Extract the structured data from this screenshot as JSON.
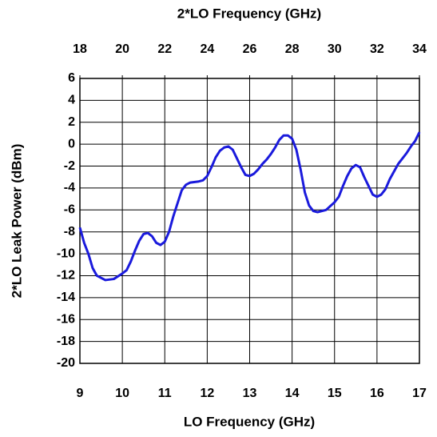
{
  "chart_data": {
    "type": "line",
    "xlabel": "LO Frequency (GHz)",
    "x2label": "2*LO Frequency (GHz)",
    "ylabel": "2*LO Leak Power (dBm)",
    "xlim": [
      9,
      17
    ],
    "xticks": [
      9,
      10,
      11,
      12,
      13,
      14,
      15,
      16,
      17
    ],
    "x2lim": [
      18,
      34
    ],
    "x2ticks": [
      18,
      20,
      22,
      24,
      26,
      28,
      30,
      32,
      34
    ],
    "ylim": [
      -20,
      6
    ],
    "yticks": [
      -20,
      -18,
      -16,
      -14,
      -12,
      -10,
      -8,
      -6,
      -4,
      -2,
      0,
      2,
      4,
      6
    ],
    "grid": true,
    "series": [
      {
        "color": "#1a1adc",
        "x": [
          9.0,
          9.1,
          9.2,
          9.3,
          9.4,
          9.6,
          9.8,
          10.0,
          10.1,
          10.2,
          10.3,
          10.4,
          10.5,
          10.6,
          10.7,
          10.8,
          10.9,
          11.0,
          11.1,
          11.2,
          11.3,
          11.4,
          11.5,
          11.6,
          11.8,
          11.9,
          12.0,
          12.1,
          12.2,
          12.3,
          12.4,
          12.5,
          12.6,
          12.7,
          12.8,
          12.9,
          13.0,
          13.1,
          13.2,
          13.3,
          13.4,
          13.5,
          13.6,
          13.7,
          13.8,
          13.9,
          14.0,
          14.1,
          14.2,
          14.3,
          14.4,
          14.5,
          14.6,
          14.8,
          15.0,
          15.1,
          15.2,
          15.3,
          15.4,
          15.5,
          15.6,
          15.7,
          15.8,
          15.9,
          16.0,
          16.1,
          16.2,
          16.3,
          16.4,
          16.5,
          16.7,
          16.8,
          16.9,
          17.0
        ],
        "values": [
          -7.6,
          -9,
          -10,
          -11.3,
          -12,
          -12.4,
          -12.3,
          -11.8,
          -11.5,
          -10.7,
          -9.7,
          -8.8,
          -8.2,
          -8.1,
          -8.4,
          -9.0,
          -9.2,
          -8.9,
          -8,
          -6.6,
          -5.4,
          -4.2,
          -3.7,
          -3.5,
          -3.4,
          -3.3,
          -2.9,
          -2.1,
          -1.2,
          -0.6,
          -0.3,
          -0.2,
          -0.5,
          -1.3,
          -2.1,
          -2.8,
          -2.9,
          -2.7,
          -2.3,
          -1.8,
          -1.4,
          -0.9,
          -0.3,
          0.4,
          0.8,
          0.8,
          0.5,
          -0.5,
          -2.3,
          -4.4,
          -5.6,
          -6.1,
          -6.2,
          -6,
          -5.3,
          -4.8,
          -3.8,
          -2.9,
          -2.2,
          -1.9,
          -2.1,
          -3.0,
          -3.8,
          -4.6,
          -4.8,
          -4.6,
          -4.1,
          -3.2,
          -2.5,
          -1.8,
          -0.8,
          -0.2,
          0.3,
          1.1
        ]
      }
    ]
  }
}
